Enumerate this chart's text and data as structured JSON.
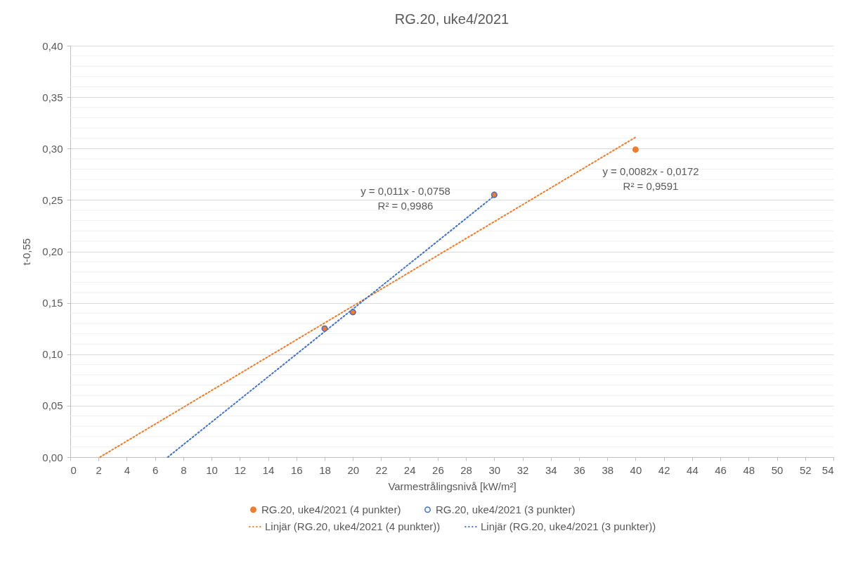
{
  "chart_data": {
    "type": "scatter",
    "title": "RG.20, uke4/2021",
    "xlabel": "Varmestrålingsnivå [kW/m²]",
    "ylabel": "t-0,55",
    "xlim": [
      0,
      54
    ],
    "ylim": [
      0,
      0.4
    ],
    "xticks": [
      0,
      2,
      4,
      6,
      8,
      10,
      12,
      14,
      16,
      18,
      20,
      22,
      24,
      26,
      28,
      30,
      32,
      34,
      36,
      38,
      40,
      42,
      44,
      46,
      48,
      50,
      52,
      54
    ],
    "yticks": [
      {
        "value": 0,
        "label": "0,00"
      },
      {
        "value": 0.01,
        "label": null
      },
      {
        "value": 0.02,
        "label": null
      },
      {
        "value": 0.03,
        "label": null
      },
      {
        "value": 0.04,
        "label": null
      },
      {
        "value": 0.05,
        "label": "0,05"
      },
      {
        "value": 0.06,
        "label": null
      },
      {
        "value": 0.07,
        "label": null
      },
      {
        "value": 0.08,
        "label": null
      },
      {
        "value": 0.09,
        "label": null
      },
      {
        "value": 0.1,
        "label": "0,10"
      },
      {
        "value": 0.11,
        "label": null
      },
      {
        "value": 0.12,
        "label": null
      },
      {
        "value": 0.13,
        "label": null
      },
      {
        "value": 0.14,
        "label": null
      },
      {
        "value": 0.15,
        "label": "0,15"
      },
      {
        "value": 0.16,
        "label": null
      },
      {
        "value": 0.17,
        "label": null
      },
      {
        "value": 0.18,
        "label": null
      },
      {
        "value": 0.19,
        "label": null
      },
      {
        "value": 0.2,
        "label": "0,20"
      },
      {
        "value": 0.21,
        "label": null
      },
      {
        "value": 0.22,
        "label": null
      },
      {
        "value": 0.23,
        "label": null
      },
      {
        "value": 0.24,
        "label": null
      },
      {
        "value": 0.25,
        "label": "0,25"
      },
      {
        "value": 0.26,
        "label": null
      },
      {
        "value": 0.27,
        "label": null
      },
      {
        "value": 0.28,
        "label": null
      },
      {
        "value": 0.29,
        "label": null
      },
      {
        "value": 0.3,
        "label": "0,30"
      },
      {
        "value": 0.31,
        "label": null
      },
      {
        "value": 0.32,
        "label": null
      },
      {
        "value": 0.33,
        "label": null
      },
      {
        "value": 0.34,
        "label": null
      },
      {
        "value": 0.35,
        "label": "0,35"
      },
      {
        "value": 0.36,
        "label": null
      },
      {
        "value": 0.37,
        "label": null
      },
      {
        "value": 0.38,
        "label": null
      },
      {
        "value": 0.39,
        "label": null
      },
      {
        "value": 0.4,
        "label": "0,40"
      }
    ],
    "grid": "y",
    "legend": "bottom",
    "series": [
      {
        "name": "RG.20, uke4/2021 (4 punkter)",
        "marker": "circle",
        "color": "#ed7d31",
        "x": [
          18,
          20,
          30,
          40
        ],
        "values": [
          0.125,
          0.141,
          0.255,
          0.299
        ]
      },
      {
        "name": "RG.20, uke4/2021 (3 punkter)",
        "marker": "circle",
        "color": "#4472c4",
        "x": [
          18,
          20,
          30
        ],
        "values": [
          0.125,
          0.141,
          0.255
        ]
      },
      {
        "name": "Linjär (RG.20, uke4/2021 (4 punkter))",
        "type": "line",
        "line_style": "dotted",
        "color": "#ed7d31",
        "x": [
          2.1,
          40
        ],
        "values": [
          0,
          0.311
        ]
      },
      {
        "name": "Linjär (RG.20, uke4/2021 (3 punkter))",
        "type": "line",
        "line_style": "dotted",
        "color": "#4472c4",
        "x": [
          6.9,
          30
        ],
        "values": [
          0,
          0.254
        ]
      }
    ],
    "annotations": [
      "y = 0,011x  - 0,0758",
      "R² = 0,9986",
      "y = 0,0082x  - 0,0172",
      "R² = 0,9591"
    ]
  }
}
